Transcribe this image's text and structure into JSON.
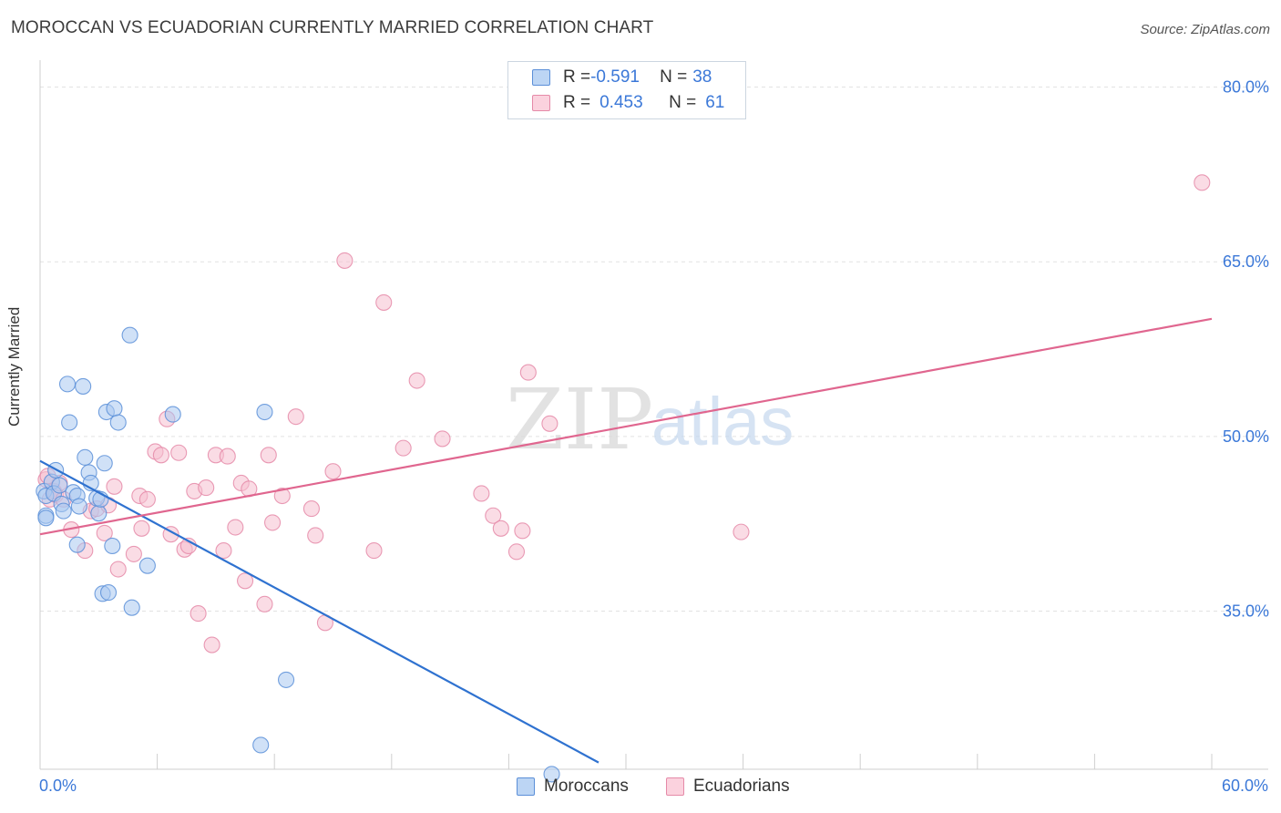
{
  "title": "MOROCCAN VS ECUADORIAN CURRENTLY MARRIED CORRELATION CHART",
  "source": "Source: ZipAtlas.com",
  "watermark": {
    "zip": "ZIP",
    "atlas": "atlas"
  },
  "colors": {
    "moroccan_fill": "#a9c8f0",
    "moroccan_stroke": "#5b8fd8",
    "moroccan_line": "#2f72d0",
    "ecuadorian_fill": "#f6bfd0",
    "ecuadorian_stroke": "#e58aa8",
    "ecuadorian_line": "#e0668f",
    "tick_label": "#3b78d8",
    "grid": "#e2e2e2"
  },
  "legend": {
    "rows": [
      {
        "r_label": "R = ",
        "r_value": "-0.591",
        "n_label": "N = ",
        "n_value": "38"
      },
      {
        "r_label": "R = ",
        "r_value": "0.453",
        "n_label": "N = ",
        "n_value": "61"
      }
    ]
  },
  "bottom_legend": {
    "moroccans": "Moroccans",
    "ecuadorians": "Ecuadorians"
  },
  "chart_data": {
    "type": "scatter",
    "title": "MOROCCAN VS ECUADORIAN CURRENTLY MARRIED CORRELATION CHART",
    "xlabel": "",
    "ylabel": "Currently Married",
    "xlim": [
      0,
      60
    ],
    "ylim": [
      21.5,
      82
    ],
    "x_tick_labels": [
      "0.0%",
      "60.0%"
    ],
    "y_ticks": [
      35,
      50,
      65,
      80
    ],
    "y_tick_labels": [
      "35.0%",
      "50.0%",
      "65.0%",
      "80.0%"
    ],
    "grid": true,
    "series": [
      {
        "name": "Moroccans",
        "R": -0.591,
        "N": 38,
        "trend": {
          "x": [
            0,
            28.6
          ],
          "y": [
            47.9,
            22.0
          ]
        },
        "points": [
          [
            0.2,
            45.3
          ],
          [
            0.3,
            44.9
          ],
          [
            0.3,
            43.2
          ],
          [
            0.3,
            43.0
          ],
          [
            0.6,
            46.1
          ],
          [
            0.7,
            45.1
          ],
          [
            0.8,
            47.1
          ],
          [
            1.0,
            45.8
          ],
          [
            1.1,
            44.2
          ],
          [
            1.2,
            43.6
          ],
          [
            1.4,
            54.5
          ],
          [
            1.5,
            51.2
          ],
          [
            1.7,
            45.2
          ],
          [
            1.9,
            44.9
          ],
          [
            1.9,
            40.7
          ],
          [
            2.0,
            44.0
          ],
          [
            2.2,
            54.3
          ],
          [
            2.3,
            48.2
          ],
          [
            2.5,
            46.9
          ],
          [
            2.6,
            46.0
          ],
          [
            2.9,
            44.7
          ],
          [
            3.0,
            43.4
          ],
          [
            3.1,
            44.6
          ],
          [
            3.2,
            36.5
          ],
          [
            3.3,
            47.7
          ],
          [
            3.4,
            52.1
          ],
          [
            3.5,
            36.6
          ],
          [
            3.7,
            40.6
          ],
          [
            3.8,
            52.4
          ],
          [
            4.0,
            51.2
          ],
          [
            4.6,
            58.7
          ],
          [
            4.7,
            35.3
          ],
          [
            5.5,
            38.9
          ],
          [
            6.8,
            51.9
          ],
          [
            11.3,
            23.5
          ],
          [
            11.5,
            52.1
          ],
          [
            12.6,
            29.1
          ],
          [
            26.2,
            21.0
          ]
        ]
      },
      {
        "name": "Ecuadorians",
        "R": 0.453,
        "N": 61,
        "trend": {
          "x": [
            0,
            60
          ],
          "y": [
            41.6,
            60.1
          ]
        },
        "points": [
          [
            0.3,
            46.3
          ],
          [
            0.5,
            44.6
          ],
          [
            0.7,
            45.3
          ],
          [
            0.8,
            45.0
          ],
          [
            1.0,
            46.0
          ],
          [
            1.2,
            44.6
          ],
          [
            1.6,
            42.0
          ],
          [
            2.3,
            40.2
          ],
          [
            2.6,
            43.6
          ],
          [
            2.9,
            43.8
          ],
          [
            3.3,
            41.7
          ],
          [
            3.5,
            44.1
          ],
          [
            3.8,
            45.7
          ],
          [
            4.0,
            38.6
          ],
          [
            4.8,
            39.9
          ],
          [
            5.1,
            44.9
          ],
          [
            5.2,
            42.1
          ],
          [
            5.5,
            44.6
          ],
          [
            5.9,
            48.7
          ],
          [
            6.2,
            48.4
          ],
          [
            6.5,
            51.5
          ],
          [
            6.7,
            41.6
          ],
          [
            7.1,
            48.6
          ],
          [
            7.4,
            40.3
          ],
          [
            7.6,
            40.6
          ],
          [
            7.9,
            45.3
          ],
          [
            8.1,
            34.8
          ],
          [
            8.5,
            45.6
          ],
          [
            8.8,
            32.1
          ],
          [
            9.0,
            48.4
          ],
          [
            9.4,
            40.2
          ],
          [
            9.6,
            48.3
          ],
          [
            10.0,
            42.2
          ],
          [
            10.3,
            46.0
          ],
          [
            10.5,
            37.6
          ],
          [
            10.7,
            45.5
          ],
          [
            11.5,
            35.6
          ],
          [
            11.7,
            48.4
          ],
          [
            11.9,
            42.6
          ],
          [
            12.4,
            44.9
          ],
          [
            13.1,
            51.7
          ],
          [
            13.9,
            43.8
          ],
          [
            14.1,
            41.5
          ],
          [
            14.6,
            34.0
          ],
          [
            15.0,
            47.0
          ],
          [
            15.6,
            65.1
          ],
          [
            17.1,
            40.2
          ],
          [
            17.6,
            61.5
          ],
          [
            18.6,
            49.0
          ],
          [
            19.3,
            54.8
          ],
          [
            20.6,
            49.8
          ],
          [
            22.6,
            45.1
          ],
          [
            23.2,
            43.2
          ],
          [
            23.6,
            42.1
          ],
          [
            24.4,
            40.1
          ],
          [
            24.7,
            41.9
          ],
          [
            25.0,
            55.5
          ],
          [
            26.1,
            51.1
          ],
          [
            35.9,
            41.8
          ],
          [
            59.5,
            71.8
          ],
          [
            0.4,
            46.6
          ]
        ]
      }
    ]
  }
}
